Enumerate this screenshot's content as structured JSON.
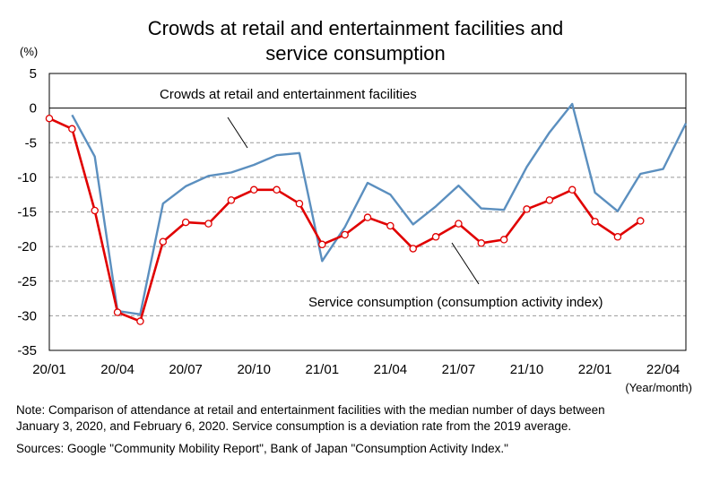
{
  "chart_data": {
    "type": "line",
    "title": "Crowds at retail and entertainment facilities and",
    "title_line2": "service consumption",
    "ylabel": "(%)",
    "xlabel": "(Year/month)",
    "ylim": [
      -35,
      5
    ],
    "yticks": [
      5,
      0,
      -5,
      -10,
      -15,
      -20,
      -25,
      -30,
      -35
    ],
    "xtick_labels": [
      "20/01",
      "20/04",
      "20/07",
      "20/10",
      "21/01",
      "21/04",
      "21/07",
      "21/10",
      "22/01",
      "22/04"
    ],
    "x": [
      "20/01",
      "20/02",
      "20/03",
      "20/04",
      "20/05",
      "20/06",
      "20/07",
      "20/08",
      "20/09",
      "20/10",
      "20/11",
      "20/12",
      "21/01",
      "21/02",
      "21/03",
      "21/04",
      "21/05",
      "21/06",
      "21/07",
      "21/08",
      "21/09",
      "21/10",
      "21/11",
      "21/12",
      "22/01",
      "22/02",
      "22/03",
      "22/04",
      "22/05"
    ],
    "grid": "horizontal dashed",
    "series": [
      {
        "name": "Crowds at retail and entertainment facilities",
        "color": "#5b8fbf",
        "values": [
          null,
          -1.0,
          -7.0,
          -29.3,
          -29.8,
          -13.8,
          -11.3,
          -9.8,
          -9.3,
          -8.2,
          -6.8,
          -6.5,
          -22.1,
          -17.2,
          -10.8,
          -12.5,
          -16.8,
          -14.2,
          -11.2,
          -14.5,
          -14.7,
          -8.5,
          -3.5,
          0.6,
          -12.2,
          -14.9,
          -9.5,
          -8.8,
          -2.2
        ]
      },
      {
        "name": "Service consumption (consumption activity index)",
        "color": "#e00000",
        "values": [
          -1.5,
          -3.0,
          -14.8,
          -29.5,
          -30.8,
          -19.3,
          -16.5,
          -16.7,
          -13.3,
          -11.8,
          -11.8,
          -13.8,
          -19.7,
          -18.3,
          -15.8,
          -17.0,
          -20.3,
          -18.6,
          -16.7,
          -19.5,
          -19.0,
          -14.6,
          -13.3,
          -11.8,
          -16.4,
          -18.6,
          -16.3,
          null,
          null
        ]
      }
    ]
  },
  "notes": {
    "line1": "Note: Comparison of attendance at retail and entertainment facilities with the median number of days between",
    "line2": "January 3, 2020, and February 6, 2020. Service consumption is a deviation rate from the 2019 average.",
    "sources": "Sources: Google \"Community Mobility Report\", Bank of Japan \"Consumption Activity Index.\""
  }
}
